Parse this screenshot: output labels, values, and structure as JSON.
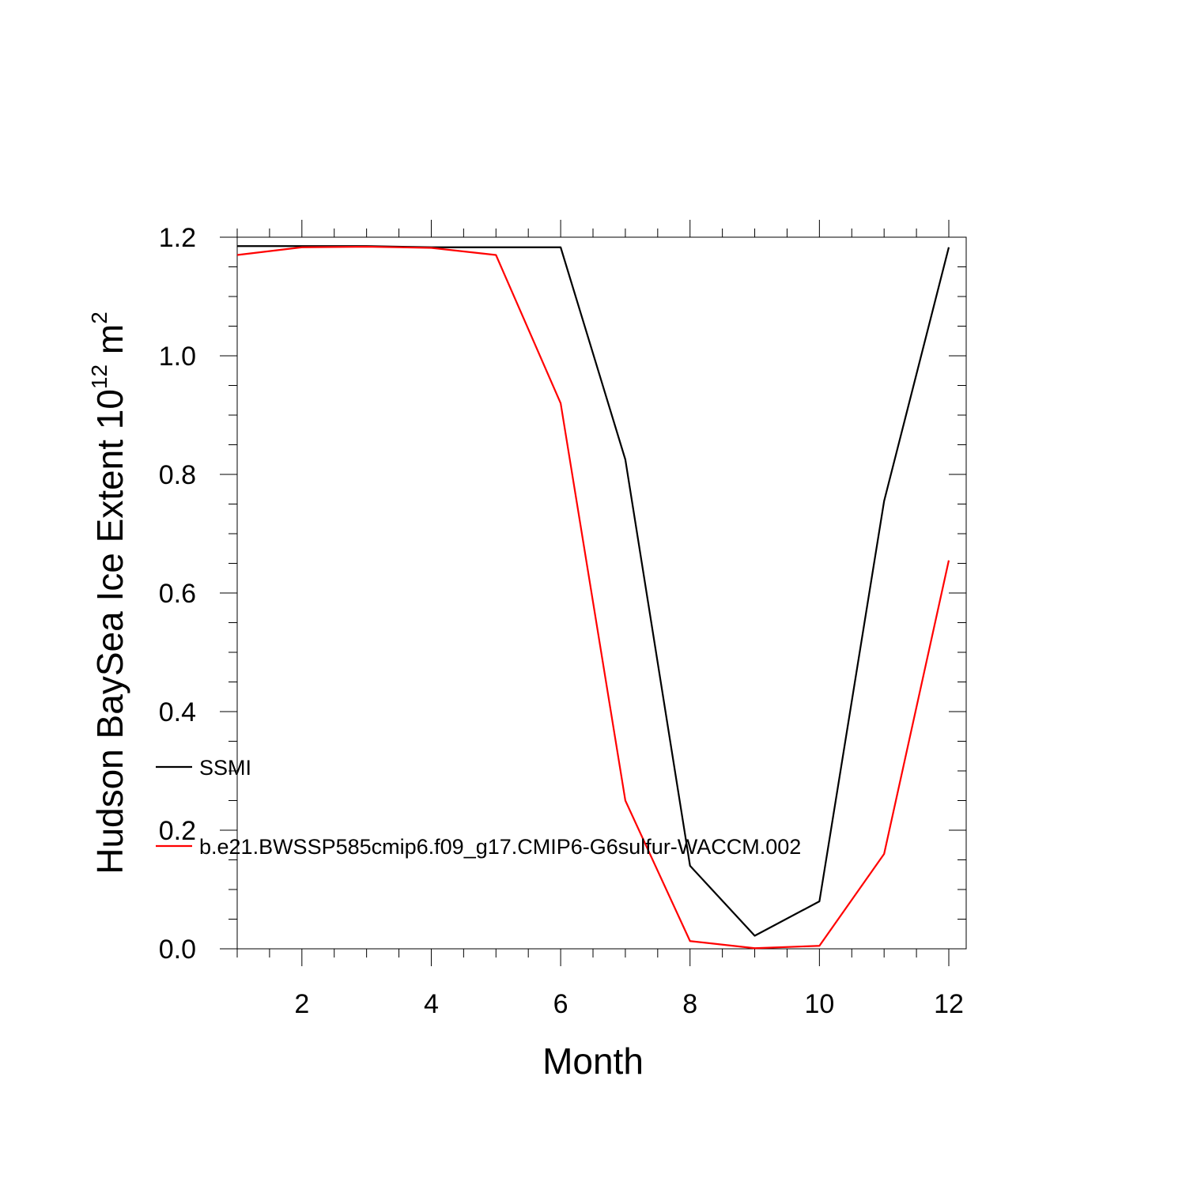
{
  "chart_data": {
    "type": "line",
    "title": "",
    "xlabel": "Month",
    "ylabel": {
      "text": "Hudson BaySea Ice Extent 10",
      "exponent": "12",
      "unit": " m",
      "unit_exponent": "2"
    },
    "xlim": [
      1,
      12
    ],
    "ylim": [
      0,
      1.2
    ],
    "x_ticks": [
      2,
      4,
      6,
      8,
      10,
      12
    ],
    "x_tick_labels": [
      "2",
      "4",
      "6",
      "8",
      "10",
      "12"
    ],
    "y_ticks": [
      0,
      0.2,
      0.4,
      0.6,
      0.8,
      1.0,
      1.2
    ],
    "y_tick_labels": [
      "0.0",
      "0.2",
      "0.4",
      "0.6",
      "0.8",
      "1.0",
      "1.2"
    ],
    "grid": false,
    "legend_position": "left, inside plot",
    "x": [
      1,
      2,
      3,
      4,
      5,
      6,
      7,
      8,
      9,
      10,
      11,
      12
    ],
    "series": [
      {
        "name": "SSMI",
        "color": "#000000",
        "values": [
          1.185,
          1.185,
          1.185,
          1.183,
          1.183,
          1.183,
          0.825,
          0.14,
          0.022,
          0.08,
          0.755,
          1.183
        ]
      },
      {
        "name": "b.e21.BWSSP585cmip6.f09_g17.CMIP6-G6sulfur-WACCM.002",
        "color": "#ff0000",
        "values": [
          1.17,
          1.183,
          1.184,
          1.182,
          1.17,
          0.92,
          0.25,
          0.013,
          0.001,
          0.005,
          0.16,
          0.655
        ]
      }
    ]
  }
}
